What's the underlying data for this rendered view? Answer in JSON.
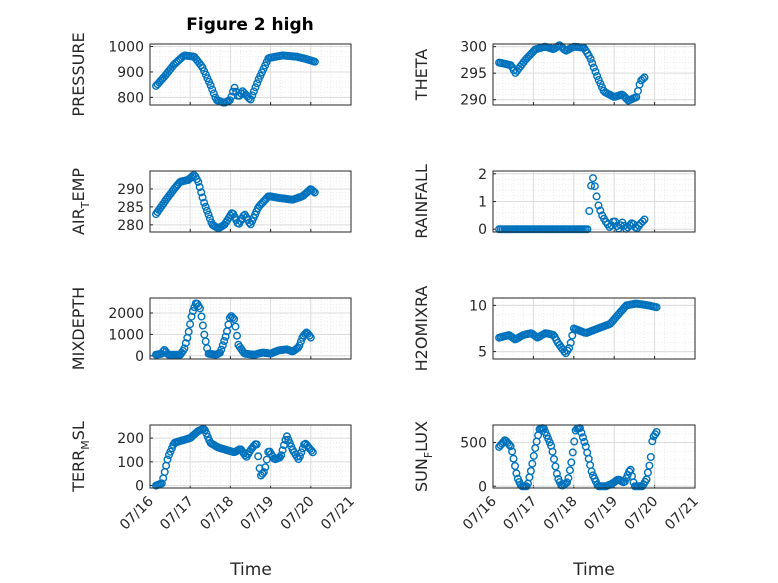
{
  "figure": {
    "title": "Figure 2 high"
  },
  "style": {
    "marker_color": "#0072BD",
    "axis_color": "#262626",
    "grid_color": "#dcdcdc"
  },
  "xaxis": {
    "type": "time",
    "label": "Time",
    "range": [
      0,
      5
    ],
    "ticks": [
      0,
      1,
      2,
      3,
      4,
      5
    ],
    "tick_labels": [
      "07/16",
      "07/17",
      "07/18",
      "07/19",
      "07/20",
      "07/21"
    ]
  },
  "chart_data": [
    {
      "type": "scatter",
      "ylabel": "PRESSURE",
      "ylim": [
        770,
        1010
      ],
      "yticks": [
        800,
        900,
        1000
      ],
      "ytick_labels": [
        "800",
        "900",
        "1000"
      ],
      "grid": true,
      "knots": [
        [
          0.15,
          845
        ],
        [
          0.35,
          880
        ],
        [
          0.6,
          930
        ],
        [
          0.85,
          965
        ],
        [
          1.1,
          960
        ],
        [
          1.3,
          920
        ],
        [
          1.5,
          850
        ],
        [
          1.65,
          790
        ],
        [
          1.85,
          778
        ],
        [
          2.0,
          790
        ],
        [
          2.1,
          840
        ],
        [
          2.2,
          800
        ],
        [
          2.3,
          825
        ],
        [
          2.5,
          790
        ],
        [
          2.7,
          870
        ],
        [
          2.95,
          955
        ],
        [
          3.3,
          965
        ],
        [
          3.65,
          960
        ],
        [
          3.95,
          948
        ],
        [
          4.1,
          940
        ]
      ],
      "points": 100
    },
    {
      "type": "scatter",
      "ylabel": "THETA",
      "ylim": [
        289,
        300.5
      ],
      "yticks": [
        290,
        295,
        300
      ],
      "ytick_labels": [
        "290",
        "295",
        "300"
      ],
      "grid": true,
      "knots": [
        [
          0.15,
          297
        ],
        [
          0.45,
          296.5
        ],
        [
          0.55,
          295
        ],
        [
          0.8,
          297.5
        ],
        [
          1.05,
          299.5
        ],
        [
          1.3,
          300
        ],
        [
          1.5,
          299.5
        ],
        [
          1.65,
          300.3
        ],
        [
          1.8,
          299.2
        ],
        [
          2.0,
          300
        ],
        [
          2.25,
          299.8
        ],
        [
          2.4,
          298
        ],
        [
          2.6,
          294
        ],
        [
          2.75,
          291.5
        ],
        [
          3.0,
          290.5
        ],
        [
          3.2,
          291
        ],
        [
          3.35,
          289.8
        ],
        [
          3.55,
          290.5
        ],
        [
          3.65,
          293.5
        ],
        [
          3.75,
          294.2
        ]
      ],
      "points": 90
    },
    {
      "type": "scatter",
      "ylabel": "AIR_TEMP",
      "ylim": [
        278,
        295
      ],
      "yticks": [
        280,
        285,
        290
      ],
      "ytick_labels": [
        "280",
        "285",
        "290"
      ],
      "grid": true,
      "knots": [
        [
          0.15,
          283
        ],
        [
          0.4,
          287
        ],
        [
          0.6,
          290
        ],
        [
          0.75,
          292
        ],
        [
          0.95,
          292.5
        ],
        [
          1.1,
          294
        ],
        [
          1.2,
          292
        ],
        [
          1.35,
          286
        ],
        [
          1.55,
          280
        ],
        [
          1.7,
          279
        ],
        [
          1.85,
          280
        ],
        [
          2.05,
          283.5
        ],
        [
          2.2,
          280
        ],
        [
          2.35,
          283
        ],
        [
          2.5,
          280
        ],
        [
          2.7,
          285
        ],
        [
          2.95,
          288
        ],
        [
          3.2,
          287.5
        ],
        [
          3.55,
          287
        ],
        [
          3.8,
          288
        ],
        [
          4.0,
          290
        ],
        [
          4.1,
          289
        ]
      ],
      "points": 110
    },
    {
      "type": "scatter",
      "ylabel": "RAINFALL",
      "ylim": [
        -0.1,
        2.1
      ],
      "yticks": [
        0,
        1,
        2
      ],
      "ytick_labels": [
        "0",
        "1",
        "2"
      ],
      "grid": true,
      "knots": [
        [
          0.15,
          0
        ],
        [
          2.2,
          0
        ],
        [
          2.35,
          0
        ],
        [
          2.45,
          2
        ],
        [
          2.52,
          1.55
        ],
        [
          2.6,
          0.9
        ],
        [
          2.7,
          0.5
        ],
        [
          2.8,
          0.25
        ],
        [
          2.9,
          0.05
        ],
        [
          3.0,
          0.35
        ],
        [
          3.1,
          0
        ],
        [
          3.2,
          0.25
        ],
        [
          3.3,
          0
        ],
        [
          3.45,
          0.25
        ],
        [
          3.55,
          0
        ],
        [
          3.65,
          0.2
        ],
        [
          3.75,
          0.35
        ]
      ],
      "points": 80
    },
    {
      "type": "scatter",
      "ylabel": "MIXDEPTH",
      "ylim": [
        -150,
        2700
      ],
      "yticks": [
        0,
        1000,
        2000
      ],
      "ytick_labels": [
        "0",
        "1000",
        "2000"
      ],
      "grid": true,
      "knots": [
        [
          0.15,
          50
        ],
        [
          0.3,
          100
        ],
        [
          0.35,
          300
        ],
        [
          0.45,
          50
        ],
        [
          0.75,
          50
        ],
        [
          0.85,
          300
        ],
        [
          0.95,
          1000
        ],
        [
          1.05,
          2000
        ],
        [
          1.15,
          2500
        ],
        [
          1.25,
          2200
        ],
        [
          1.35,
          1000
        ],
        [
          1.45,
          100
        ],
        [
          1.65,
          50
        ],
        [
          1.75,
          150
        ],
        [
          1.9,
          1000
        ],
        [
          2.0,
          1900
        ],
        [
          2.1,
          1700
        ],
        [
          2.2,
          500
        ],
        [
          2.35,
          100
        ],
        [
          2.6,
          50
        ],
        [
          2.8,
          150
        ],
        [
          3.0,
          100
        ],
        [
          3.2,
          250
        ],
        [
          3.4,
          300
        ],
        [
          3.55,
          200
        ],
        [
          3.7,
          400
        ],
        [
          3.8,
          900
        ],
        [
          3.9,
          1100
        ],
        [
          4.0,
          850
        ]
      ],
      "points": 110
    },
    {
      "type": "scatter",
      "ylabel": "H2OMIXRA",
      "ylim": [
        4.2,
        10.8
      ],
      "yticks": [
        5,
        10
      ],
      "ytick_labels": [
        "5",
        "10"
      ],
      "grid": true,
      "knots": [
        [
          0.15,
          6.5
        ],
        [
          0.4,
          6.8
        ],
        [
          0.55,
          6.3
        ],
        [
          0.75,
          6.8
        ],
        [
          0.95,
          7
        ],
        [
          1.1,
          6.5
        ],
        [
          1.3,
          7
        ],
        [
          1.5,
          6.8
        ],
        [
          1.6,
          6
        ],
        [
          1.8,
          4.8
        ],
        [
          1.9,
          5.5
        ],
        [
          2.0,
          7.5
        ],
        [
          2.3,
          7
        ],
        [
          2.6,
          7.5
        ],
        [
          2.9,
          8
        ],
        [
          3.1,
          9
        ],
        [
          3.3,
          10
        ],
        [
          3.55,
          10.2
        ],
        [
          3.85,
          10
        ],
        [
          4.05,
          9.8
        ]
      ],
      "points": 100
    },
    {
      "type": "scatter",
      "ylabel": "TERR_MSL",
      "ylim": [
        -10,
        255
      ],
      "yticks": [
        0,
        100,
        200
      ],
      "ytick_labels": [
        "0",
        "100",
        "200"
      ],
      "grid": true,
      "knots": [
        [
          0.15,
          0
        ],
        [
          0.3,
          10
        ],
        [
          0.45,
          120
        ],
        [
          0.6,
          180
        ],
        [
          0.8,
          190
        ],
        [
          1.0,
          200
        ],
        [
          1.2,
          230
        ],
        [
          1.35,
          240
        ],
        [
          1.5,
          180
        ],
        [
          1.7,
          160
        ],
        [
          1.9,
          150
        ],
        [
          2.1,
          140
        ],
        [
          2.25,
          155
        ],
        [
          2.4,
          120
        ],
        [
          2.5,
          150
        ],
        [
          2.65,
          180
        ],
        [
          2.75,
          40
        ],
        [
          2.85,
          60
        ],
        [
          2.95,
          150
        ],
        [
          3.1,
          110
        ],
        [
          3.25,
          120
        ],
        [
          3.4,
          210
        ],
        [
          3.55,
          150
        ],
        [
          3.7,
          110
        ],
        [
          3.85,
          180
        ],
        [
          4.05,
          140
        ]
      ],
      "points": 110
    },
    {
      "type": "scatter",
      "ylabel": "SUN_FLUX",
      "ylim": [
        -20,
        700
      ],
      "yticks": [
        0,
        500
      ],
      "ytick_labels": [
        "0",
        "500"
      ],
      "grid": true,
      "knots": [
        [
          0.15,
          450
        ],
        [
          0.3,
          530
        ],
        [
          0.45,
          450
        ],
        [
          0.6,
          100
        ],
        [
          0.7,
          0
        ],
        [
          0.85,
          0
        ],
        [
          0.95,
          200
        ],
        [
          1.05,
          450
        ],
        [
          1.15,
          650
        ],
        [
          1.25,
          670
        ],
        [
          1.45,
          450
        ],
        [
          1.6,
          100
        ],
        [
          1.7,
          0
        ],
        [
          1.85,
          50
        ],
        [
          1.95,
          300
        ],
        [
          2.05,
          650
        ],
        [
          2.15,
          670
        ],
        [
          2.3,
          450
        ],
        [
          2.45,
          150
        ],
        [
          2.6,
          0
        ],
        [
          2.8,
          0
        ],
        [
          2.95,
          30
        ],
        [
          3.1,
          80
        ],
        [
          3.25,
          40
        ],
        [
          3.4,
          200
        ],
        [
          3.5,
          0
        ],
        [
          3.7,
          0
        ],
        [
          3.8,
          80
        ],
        [
          3.9,
          300
        ],
        [
          3.95,
          550
        ],
        [
          4.05,
          620
        ]
      ],
      "points": 110
    }
  ]
}
